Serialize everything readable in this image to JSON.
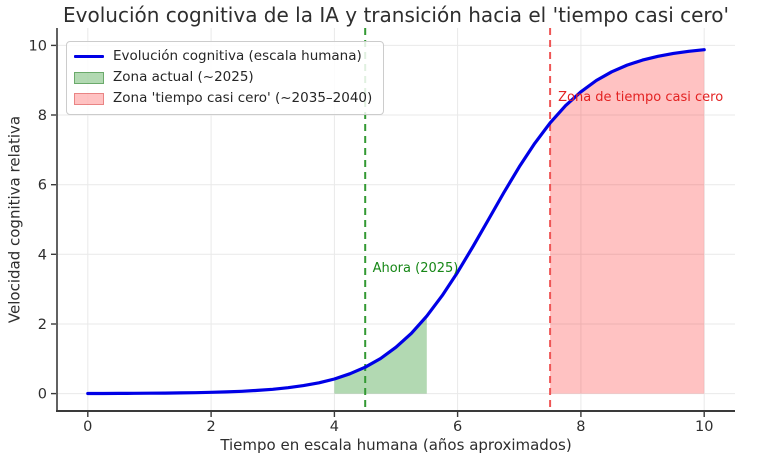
{
  "chart_data": {
    "type": "line",
    "title": "Evolución cognitiva de la IA y transición hacia el 'tiempo casi cero'",
    "xlabel": "Tiempo en escala humana (años aproximados)",
    "ylabel": "Velocidad cognitiva relativa",
    "xlim": [
      -0.5,
      10.5
    ],
    "ylim": [
      -0.5,
      10.5
    ],
    "xticks": [
      0,
      2,
      4,
      6,
      8,
      10
    ],
    "yticks": [
      0,
      2,
      4,
      6,
      8,
      10
    ],
    "grid": true,
    "colors": {
      "curve": "#0000e6",
      "grid": "#e9e9e9",
      "spine": "#3a3a3a",
      "tick_label": "#2e2e2e",
      "green_line": "#339933",
      "red_line": "#ee5555",
      "green_fill": "rgba(0,128,0,0.30)",
      "red_fill": "rgba(255,0,0,0.24)"
    },
    "series": [
      {
        "name": "Evolución cognitiva (escala humana)",
        "color": "#0000e6",
        "points": [
          [
            0,
            0.003
          ],
          [
            0.25,
            0.004
          ],
          [
            0.5,
            0.006
          ],
          [
            0.75,
            0.008
          ],
          [
            1,
            0.01
          ],
          [
            1.25,
            0.014
          ],
          [
            1.5,
            0.019
          ],
          [
            1.75,
            0.026
          ],
          [
            2,
            0.036
          ],
          [
            2.25,
            0.049
          ],
          [
            2.5,
            0.067
          ],
          [
            2.75,
            0.092
          ],
          [
            3,
            0.124
          ],
          [
            3.25,
            0.169
          ],
          [
            3.5,
            0.229
          ],
          [
            3.75,
            0.311
          ],
          [
            4,
            0.42
          ],
          [
            4.25,
            0.567
          ],
          [
            4.5,
            0.759
          ],
          [
            4.75,
            1.009
          ],
          [
            5,
            1.331
          ],
          [
            5.25,
            1.733
          ],
          [
            5.5,
            2.227
          ],
          [
            5.75,
            2.815
          ],
          [
            6,
            3.487
          ],
          [
            6.25,
            4.225
          ],
          [
            6.5,
            5.0
          ],
          [
            6.75,
            5.775
          ],
          [
            7,
            6.513
          ],
          [
            7.25,
            7.186
          ],
          [
            7.5,
            7.773
          ],
          [
            7.75,
            8.267
          ],
          [
            8,
            8.669
          ],
          [
            8.25,
            8.991
          ],
          [
            8.5,
            9.241
          ],
          [
            8.75,
            9.434
          ],
          [
            9,
            9.579
          ],
          [
            9.25,
            9.688
          ],
          [
            9.5,
            9.77
          ],
          [
            9.75,
            9.831
          ],
          [
            10,
            9.876
          ]
        ]
      }
    ],
    "zones": [
      {
        "name": "Zona actual (~2025)",
        "x_start": 4,
        "x_end": 5.5,
        "y_base": 0,
        "fill": "rgba(0,128,0,0.30)"
      },
      {
        "name": "Zona 'tiempo casi cero' (~2035–2040)",
        "x_start": 7.5,
        "x_end": 10,
        "y_base": 0,
        "fill": "rgba(255,0,0,0.24)"
      }
    ],
    "vlines": [
      {
        "x": 4.5,
        "color": "#339933",
        "style": "dashed"
      },
      {
        "x": 7.5,
        "color": "#ee5555",
        "style": "dashed"
      }
    ],
    "annotations": [
      {
        "text": "Ahora (2025)",
        "x": 4.62,
        "y": 3.82,
        "color": "#178717"
      },
      {
        "text": "Zona de tiempo casi cero",
        "x": 7.63,
        "y": 8.72,
        "color": "#e32222"
      }
    ],
    "legend": {
      "position": "upper-left",
      "entries": [
        {
          "type": "line",
          "label": "Evolución cognitiva (escala humana)",
          "color": "#0000e6",
          "border": "none"
        },
        {
          "type": "patch",
          "label": "Zona actual (~2025)",
          "color": "rgba(0,128,0,0.30)",
          "border": "rgba(0,100,0,0.40)"
        },
        {
          "type": "patch",
          "label": "Zona 'tiempo casi cero' (~2035–2040)",
          "color": "rgba(255,0,0,0.24)",
          "border": "rgba(200,40,40,0.40)"
        }
      ]
    }
  }
}
